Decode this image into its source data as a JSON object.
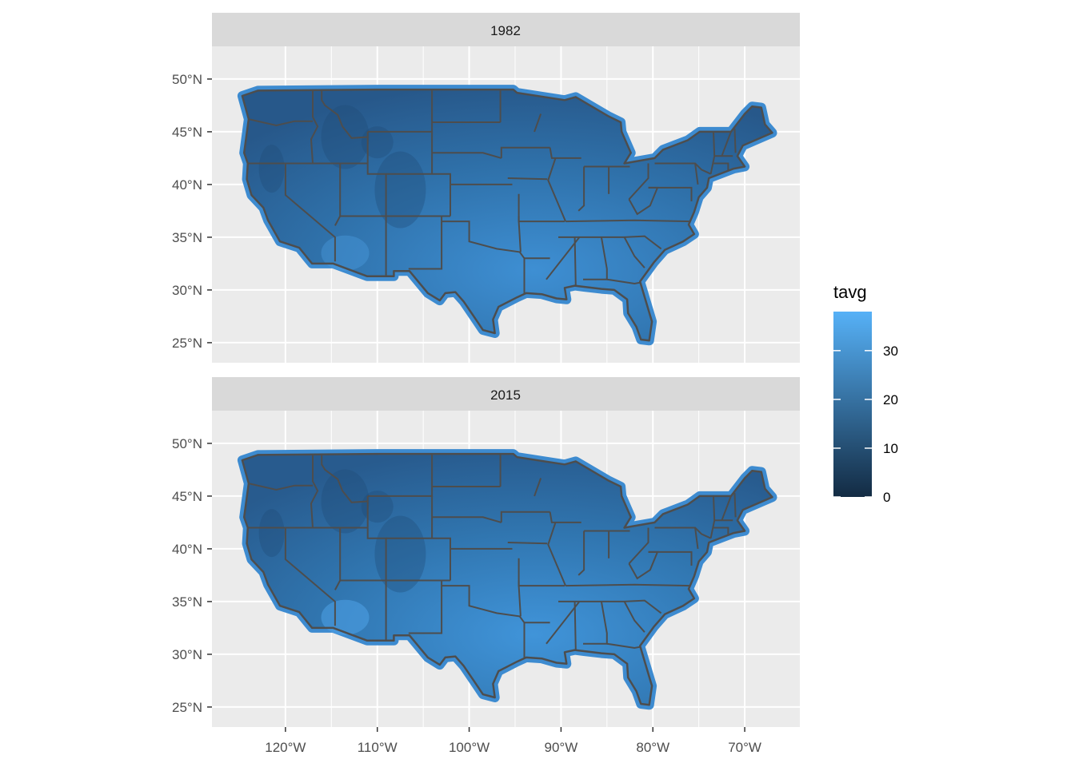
{
  "chart_data": {
    "type": "heatmap",
    "subtype": "faceted-choropleth-raster-map",
    "fill_variable": "tavg",
    "legend": {
      "title": "tavg",
      "placement": "right",
      "breaks": [
        0,
        10,
        20,
        30
      ],
      "break_labels": [
        "0",
        "10",
        "20",
        "30"
      ],
      "limits": [
        0,
        38
      ],
      "low_color": "#132B43",
      "high_color": "#56B1F7"
    },
    "x_axis": {
      "range": [
        -128,
        -64
      ],
      "breaks": [
        -120,
        -110,
        -100,
        -90,
        -80,
        -70
      ],
      "labels": [
        "120°W",
        "110°W",
        "100°W",
        "90°W",
        "80°W",
        "70°W"
      ]
    },
    "y_axis": {
      "range": [
        23.1,
        53.1
      ],
      "breaks": [
        25,
        30,
        35,
        40,
        45,
        50
      ],
      "labels": [
        "25°N",
        "30°N",
        "35°N",
        "40°N",
        "45°N",
        "50°N"
      ]
    },
    "grid": true,
    "panel_background": "#EBEBEB",
    "strip_background": "#D9D9D9",
    "state_border_color": "#4D4D4D",
    "facets": [
      {
        "label": "1982",
        "approx_tavg_range": [
          8,
          36
        ]
      },
      {
        "label": "2015",
        "approx_tavg_range": [
          8,
          38
        ]
      }
    ]
  }
}
